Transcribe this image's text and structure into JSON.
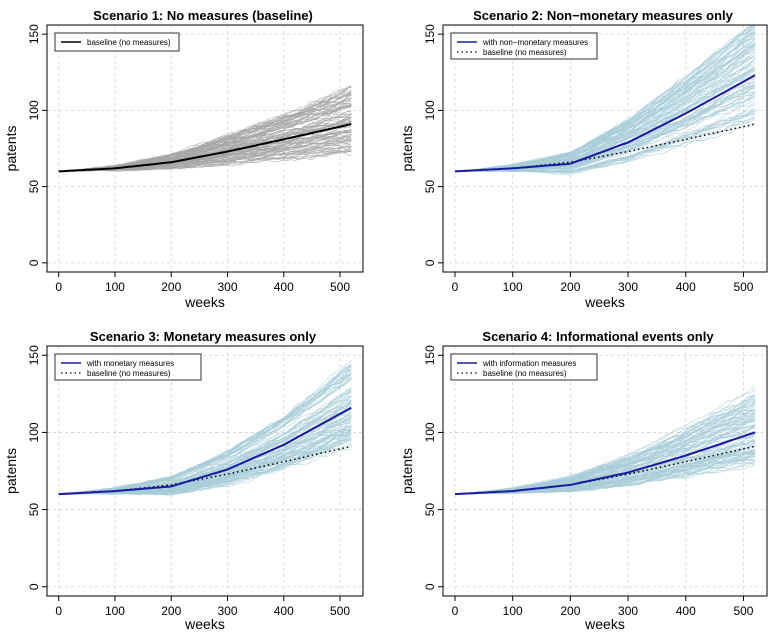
{
  "chart_data": [
    {
      "type": "line",
      "title": "Scenario 1: No measures (baseline)",
      "xlabel": "weeks",
      "ylabel": "patents",
      "xlim": [
        0,
        520
      ],
      "ylim": [
        0,
        150
      ],
      "xticks": [
        "0",
        "100",
        "200",
        "300",
        "400",
        "500"
      ],
      "yticks": [
        "0",
        "50",
        "100",
        "150"
      ],
      "legend": "top-left",
      "grid": true,
      "simulation_runs": {
        "color": "#a6a6a6",
        "count": 100,
        "spread_at_end": [
          72,
          118
        ]
      },
      "series": [
        {
          "name": "baseline (no measures)",
          "color": "#000000",
          "style": "solid",
          "x": [
            0,
            100,
            200,
            300,
            400,
            520
          ],
          "y": [
            60,
            62,
            66,
            73,
            81,
            91
          ]
        }
      ]
    },
    {
      "type": "line",
      "title": "Scenario 2: Non−monetary measures only",
      "xlabel": "weeks",
      "ylabel": "patents",
      "xlim": [
        0,
        520
      ],
      "ylim": [
        0,
        150
      ],
      "xticks": [
        "0",
        "100",
        "200",
        "300",
        "400",
        "500"
      ],
      "yticks": [
        "0",
        "50",
        "100",
        "150"
      ],
      "legend": "top-left",
      "grid": true,
      "simulation_runs": {
        "color": "#a7cdd8",
        "count": 100,
        "spread_at_end": [
          92,
          160
        ]
      },
      "series": [
        {
          "name": "with non−monetary measures",
          "color": "#1a1aa0",
          "style": "solid",
          "x": [
            0,
            100,
            200,
            300,
            400,
            520
          ],
          "y": [
            60,
            62,
            65,
            79,
            98,
            123
          ]
        },
        {
          "name": "baseline (no measures)",
          "color": "#000000",
          "style": "dotted",
          "x": [
            0,
            100,
            200,
            300,
            400,
            520
          ],
          "y": [
            60,
            62,
            66,
            73,
            81,
            91
          ]
        }
      ]
    },
    {
      "type": "line",
      "title": "Scenario 3: Monetary measures only",
      "xlabel": "weeks",
      "ylabel": "patents",
      "xlim": [
        0,
        520
      ],
      "ylim": [
        0,
        150
      ],
      "xticks": [
        "0",
        "100",
        "200",
        "300",
        "400",
        "500"
      ],
      "yticks": [
        "0",
        "50",
        "100",
        "150"
      ],
      "legend": "top-left",
      "grid": true,
      "simulation_runs": {
        "color": "#a7cdd8",
        "count": 100,
        "spread_at_end": [
          90,
          145
        ]
      },
      "series": [
        {
          "name": "with monetary measures",
          "color": "#1a1aa0",
          "style": "solid",
          "x": [
            0,
            100,
            200,
            300,
            400,
            520
          ],
          "y": [
            60,
            62,
            65,
            76,
            92,
            116
          ]
        },
        {
          "name": "baseline (no measures)",
          "color": "#000000",
          "style": "dotted",
          "x": [
            0,
            100,
            200,
            300,
            400,
            520
          ],
          "y": [
            60,
            62,
            66,
            73,
            81,
            91
          ]
        }
      ]
    },
    {
      "type": "line",
      "title": "Scenario 4: Informational events only",
      "xlabel": "weeks",
      "ylabel": "patents",
      "xlim": [
        0,
        520
      ],
      "ylim": [
        0,
        150
      ],
      "xticks": [
        "0",
        "100",
        "200",
        "300",
        "400",
        "500"
      ],
      "yticks": [
        "0",
        "50",
        "100",
        "150"
      ],
      "legend": "top-left",
      "grid": true,
      "simulation_runs": {
        "color": "#a7cdd8",
        "count": 100,
        "spread_at_end": [
          80,
          128
        ]
      },
      "series": [
        {
          "name": "with information measures",
          "color": "#1a1aa0",
          "style": "solid",
          "x": [
            0,
            100,
            200,
            300,
            400,
            520
          ],
          "y": [
            60,
            62,
            66,
            74,
            85,
            100
          ]
        },
        {
          "name": "baseline (no measures)",
          "color": "#000000",
          "style": "dotted",
          "x": [
            0,
            100,
            200,
            300,
            400,
            520
          ],
          "y": [
            60,
            62,
            66,
            73,
            81,
            91
          ]
        }
      ]
    }
  ]
}
